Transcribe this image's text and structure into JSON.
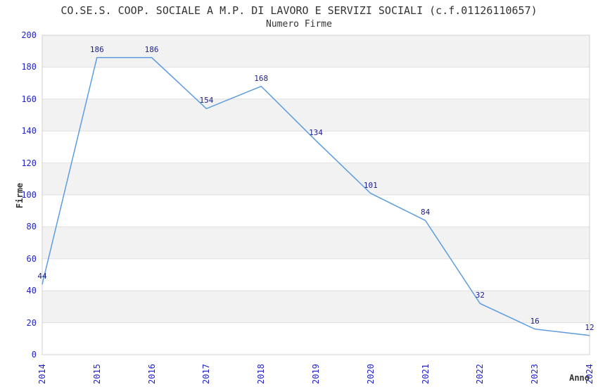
{
  "chart_data": {
    "type": "line",
    "title": "CO.SE.S. COOP. SOCIALE A M.P. DI LAVORO E SERVIZI SOCIALI (c.f.01126110657)",
    "subtitle": "Numero Firme",
    "xlabel": "Anno",
    "ylabel": "Firme",
    "categories": [
      "2014",
      "2015",
      "2016",
      "2017",
      "2018",
      "2019",
      "2020",
      "2021",
      "2022",
      "2023",
      "2024"
    ],
    "values": [
      44,
      186,
      186,
      154,
      168,
      134,
      101,
      84,
      32,
      16,
      12
    ],
    "ylim": [
      0,
      200
    ],
    "ytick_step": 20,
    "grid": "horizontal-bands-alternating",
    "legend": false,
    "colors": {
      "line": "#5d9cdf",
      "tick_label": "#2323cc",
      "data_label": "#1f2090",
      "band": "#f2f2f2",
      "grid": "#e0e0e0",
      "border": "#d0d0d0",
      "text": "#333333",
      "background": "#ffffff"
    }
  }
}
